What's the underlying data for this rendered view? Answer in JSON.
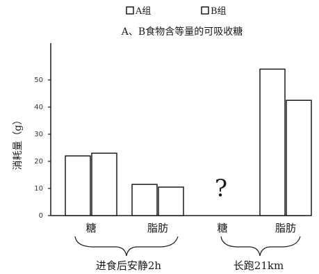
{
  "chart_data": {
    "type": "bar",
    "title": "A、B食物含等量的可吸收糖",
    "ylabel": "消耗量（g）",
    "ylim": [
      0,
      60
    ],
    "yticks": [
      "0",
      "10",
      "20",
      "30",
      "40",
      "50"
    ],
    "legend": {
      "placement": "top",
      "entries": [
        "A组",
        "B组"
      ]
    },
    "series": [
      {
        "name": "A组",
        "values": [
          22,
          11.5,
          null,
          54
        ]
      },
      {
        "name": "B组",
        "values": [
          23,
          10.5,
          null,
          42.5
        ]
      }
    ],
    "categories": [
      "糖",
      "脂肪",
      "糖",
      "脂肪"
    ],
    "groups": [
      {
        "label": "进食后安静2h",
        "categories": [
          "糖",
          "脂肪"
        ]
      },
      {
        "label": "长跑21km",
        "categories": [
          "糖",
          "脂肪"
        ]
      }
    ],
    "annotations": [
      {
        "text": "?",
        "category_index": 2
      }
    ],
    "grid": false
  },
  "colors": {
    "bar_fill": "#ffffff",
    "stroke": "#1a1a1a"
  }
}
